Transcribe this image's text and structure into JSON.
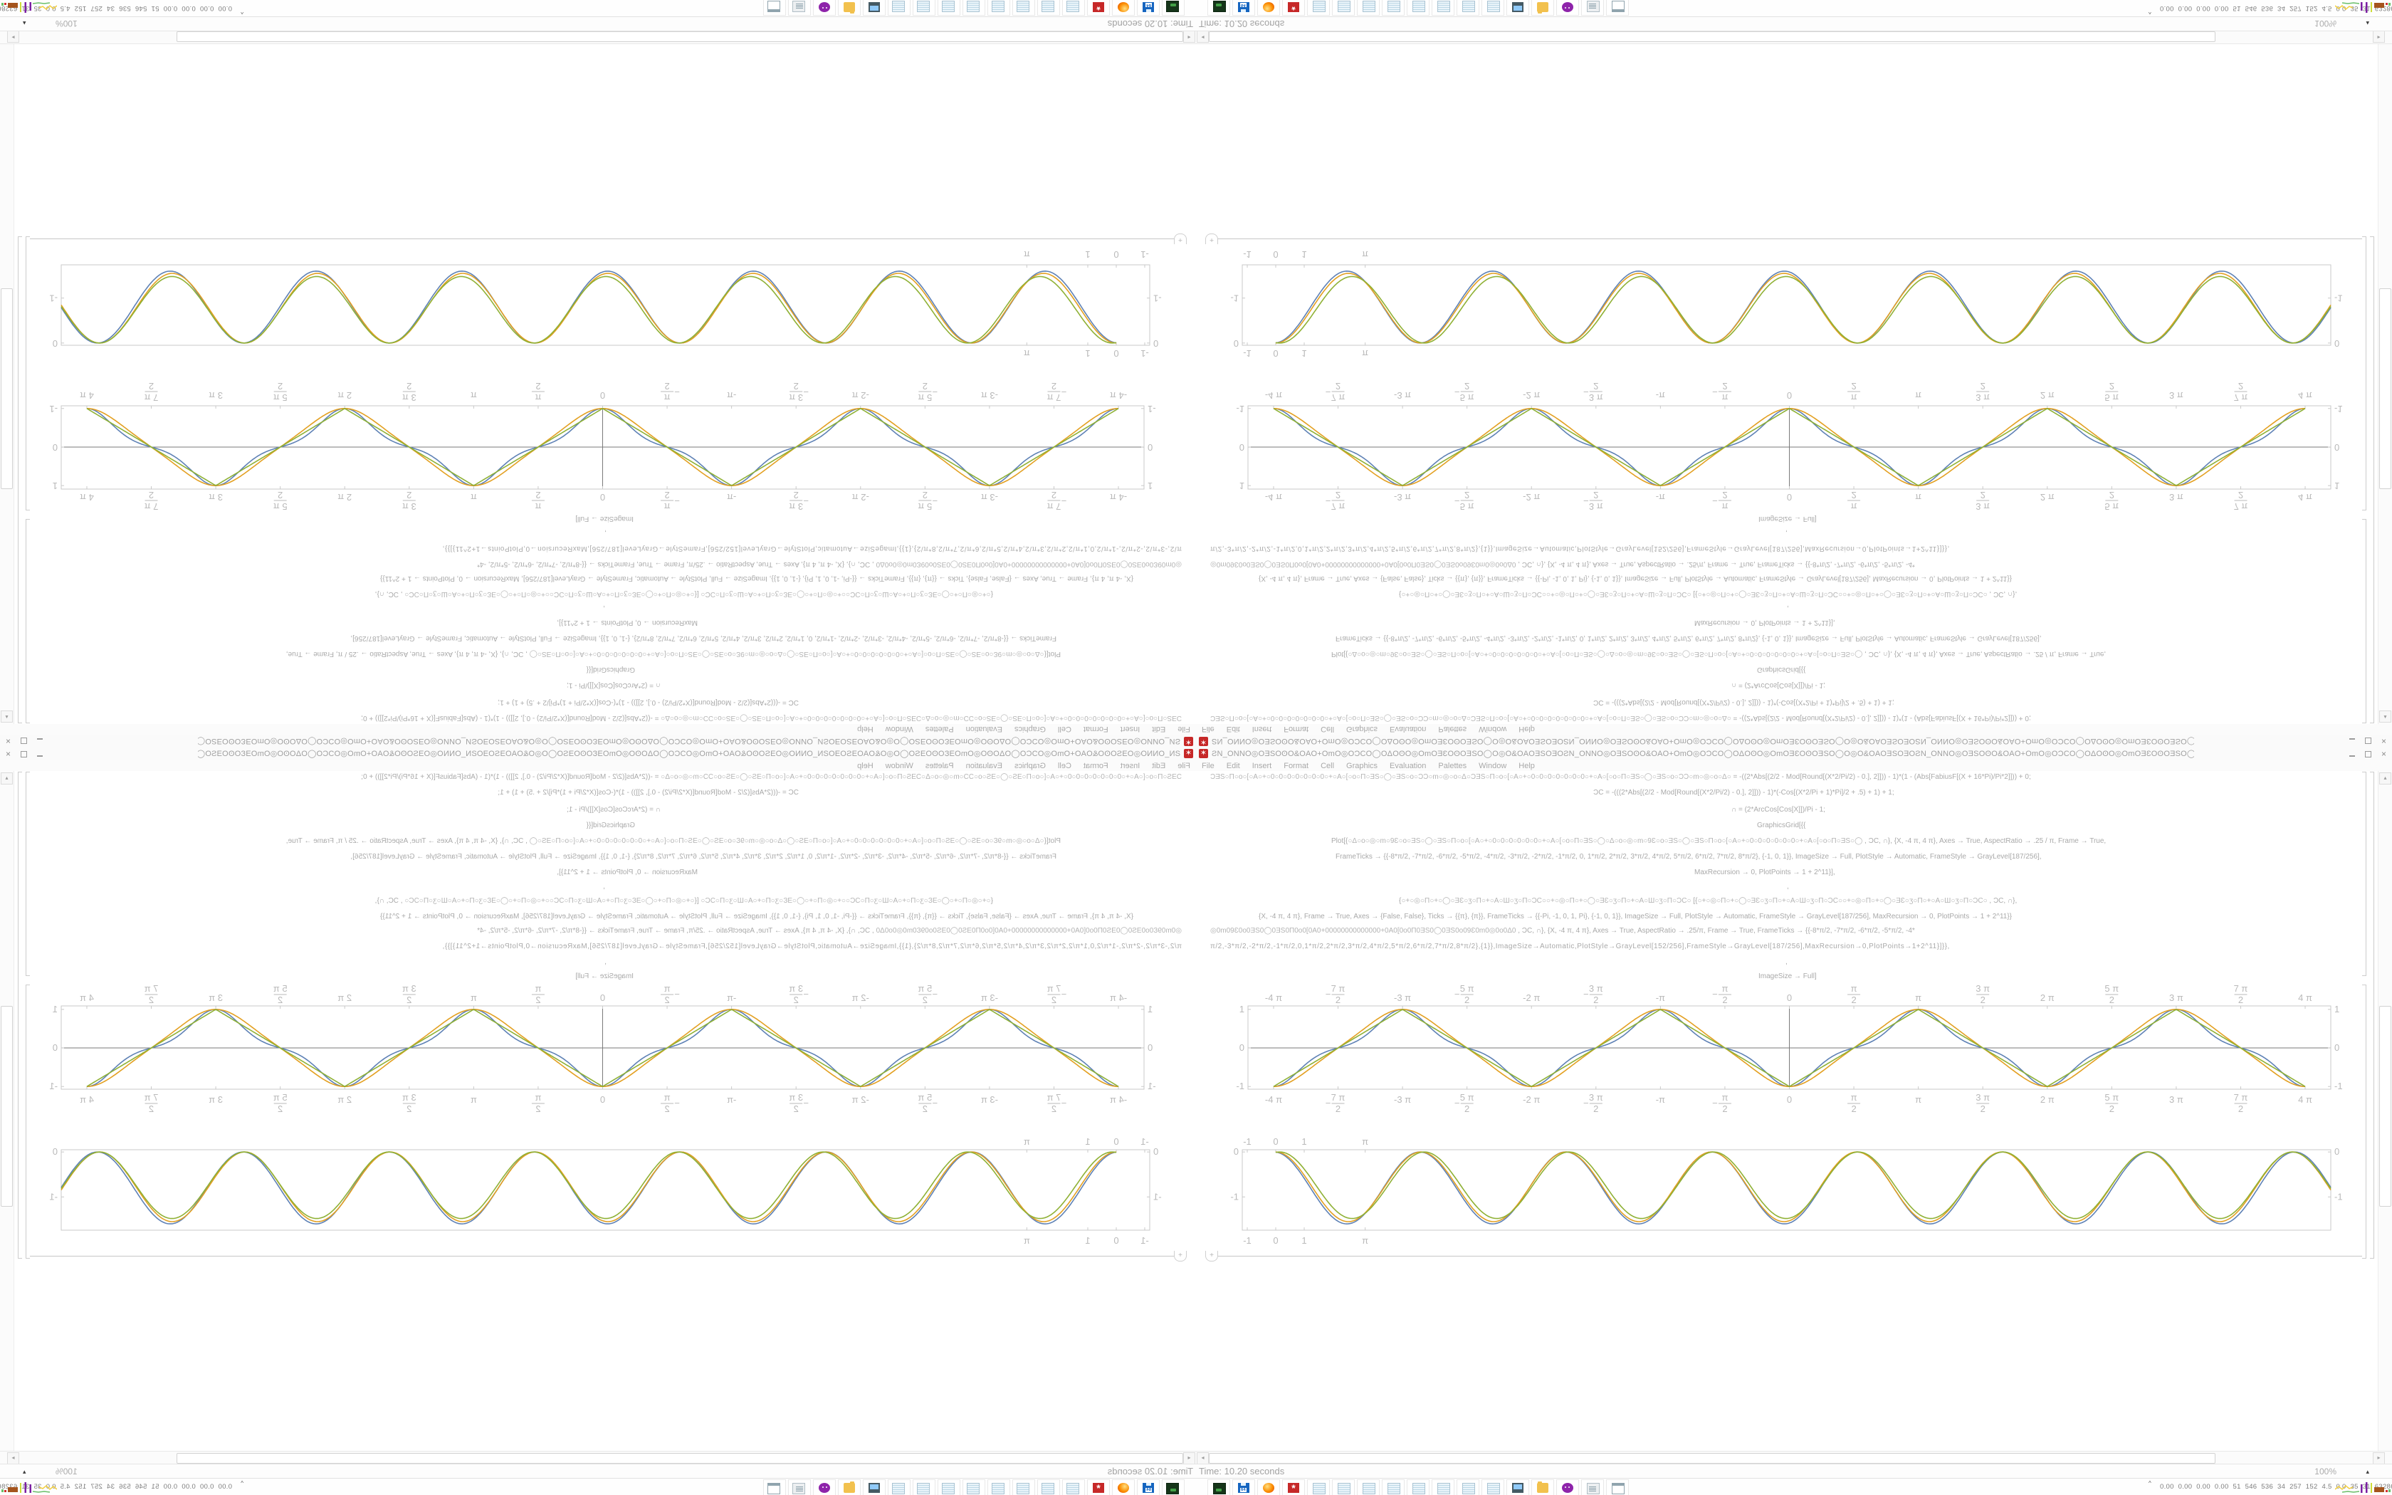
{
  "window": {
    "icon": "mathematica-spikey",
    "title_glyph_motif": "ƧN_ONNO◎OƎSOʘO&OAO+OmO◎OƆCO◯OΔOʘO◎OmOƎƐOʘOƎSO◯O◎O&OAOƎSOƎO",
    "title_glyph_repeat": 3,
    "title_file_tail": "ONNO_NB",
    "title_app_suffix": " - Wolfram Mathematica 12.2",
    "buttons": [
      "minimize",
      "maximize",
      "close"
    ]
  },
  "menu": [
    "File",
    "Edit",
    "Insert",
    "Format",
    "Cell",
    "Graphics",
    "Evaluation",
    "Palettes",
    "Window",
    "Help"
  ],
  "code_cell": {
    "glyph_motifs": {
      "G1": "ƆƎS○Π○o○[○A○+○0○0○0○0○0○0○0○+○A○[○o○Π○ƎS○◯○ƎS○o○ƆƆ○m○◎○o○Δ○",
      "G2": "○Δ○o○◎○m○9Ɛ○o○ƎS○◯○ƎS○Π○o○[○A○+○0○0○0○0○0○0○+○A○[○o○Π○ƎS○◯",
      "G3": "○+○◎○Π○+○◯○ƎƐ○ʒ○Π○+○A○Ш○ʒ○Π○ƆC○",
      "G4": "◎0m09Ɛ0o0ƎS0◯0ƎS0Π0o0[0A0+00000000000000+0A0[0o0Π0ƎS0◯0ƎS0o09Ɛ0m0◎0o0Δ0"
    },
    "lines": [
      {
        "y": 3,
        "x": 20,
        "parts": [
          [
            "g",
            "G1",
            2
          ],
          [
            "t",
            " = -((2*Abs[(2/2 - Mod[Round[(X*2/Pi/2) - 0.], 2]])) - 1)*(1 - (Abs[FabiusF[(X + 16*Pi)/Pi*2]])) + 0;"
          ]
        ]
      },
      {
        "y": 25,
        "x": 558,
        "parts": [
          [
            "t",
            "ƆC = -(((2*Abs[(2/2 - Mod[Round[(X*2/Pi/2) - 0.], 2]])) - 1)*(-Cos[(X*2/Pi + 1)*Pi]/2 + .5) + 1) + 1;"
          ]
        ]
      },
      {
        "y": 49,
        "x": 752,
        "parts": [
          [
            "t",
            "∩ = (2*ArcCos[Cos[X]])/Pi - 1;"
          ]
        ]
      },
      {
        "y": 71,
        "x": 788,
        "parts": [
          [
            "t",
            "GraphicsGrid[{{"
          ]
        ]
      },
      {
        "y": 93,
        "x": 190,
        "parts": [
          [
            "t",
            "Plot[{"
          ],
          [
            "g",
            "G2",
            2
          ],
          [
            "t",
            " , ƆC, ∩}, {X, -4 π, 4 π}, Axes → True, AspectRatio → .25 / π, Frame → True,"
          ]
        ]
      },
      {
        "y": 115,
        "x": 196,
        "parts": [
          [
            "t",
            "FrameTicks → {{-8*π/2, -7*π/2, -6*π/2, -5*π/2, -4*π/2, -3*π/2, -2*π/2, -1*π/2, 0, 1*π/2, 2*π/2, 3*π/2, 4*π/2, 5*π/2, 6*π/2, 7*π/2, 8*π/2}, {-1, 0, 1}}, ImageSize → Full, PlotStyle → Automatic, FrameStyle → GrayLevel[187/256],"
          ]
        ]
      },
      {
        "y": 137,
        "x": 700,
        "parts": [
          [
            "t",
            "MaxRecursion → 0, PlotPoints → 1 + 2^11}],"
          ]
        ]
      },
      {
        "y": 157,
        "x": 830,
        "parts": [
          [
            "t",
            ","
          ]
        ]
      },
      {
        "y": 177,
        "x": 285,
        "parts": [
          [
            "t",
            "{"
          ],
          [
            "g",
            "G3",
            2
          ],
          [
            "t",
            " [{"
          ],
          [
            "g",
            "G3",
            2
          ],
          [
            "t",
            " , ƆC, ∩},"
          ]
        ]
      },
      {
        "y": 199,
        "x": 88,
        "parts": [
          [
            "t",
            "{X, -4 π, 4 π}, Frame → True, Axes → {False, False}, Ticks → {{π}, {π}}, FrameTicks → {{-Pi, -1, 0, 1, Pi}, {-1, 0, 1}}, ImageSize → Full, PlotStyle → Automatic, FrameStyle → GrayLevel[187/256], MaxRecursion → 0, PlotPoints → 1 + 2^11}}"
          ]
        ]
      },
      {
        "y": 219,
        "x": 20,
        "parts": [
          [
            "g",
            "G4",
            1
          ],
          [
            "t",
            " , ƆC, ∩}, {X, -4 π, 4 π}, Axes → True, AspectRatio → .25/π, Frame → True, FrameTicks → {{-8*π/2, -7*π/2, -6*π/2, -5*π/2, -4*"
          ]
        ]
      },
      {
        "y": 241,
        "x": 20,
        "ls": 0.5,
        "parts": [
          [
            "t",
            "π/2,-3*π/2,-2*π/2,-1*π/2,0,1*π/2,2*π/2,3*π/2,4*π/2,5*π/2,6*π/2,7*π/2,8*π/2},{1}},ImageSize→Automatic,PlotStyle→GrayLevel[152/256],FrameStyle→GrayLevel[187/256],MaxRecursion→0,PlotPoints→1+2^11}]}},"
          ]
        ]
      },
      {
        "y": 263,
        "x": 828,
        "parts": [
          [
            "t",
            ","
          ]
        ]
      },
      {
        "y": 283,
        "x": 790,
        "parts": [
          [
            "t",
            "ImageSize → Full]"
          ]
        ]
      }
    ]
  },
  "chart_data": [
    {
      "type": "line",
      "title": "",
      "xlabel": "",
      "ylabel": "",
      "x_range_shown": [
        -13.19,
        13.19
      ],
      "y_range_shown": [
        -1.07,
        1.09
      ],
      "grid": false,
      "frame": true,
      "axes": true,
      "x_ticks": [
        {
          "v": -12.566,
          "plain": "-4 π"
        },
        {
          "v": -10.996,
          "neg": true,
          "num": "7 π",
          "den": "2"
        },
        {
          "v": -9.4248,
          "plain": "-3 π"
        },
        {
          "v": -7.854,
          "neg": true,
          "num": "5 π",
          "den": "2"
        },
        {
          "v": -6.2832,
          "plain": "-2 π"
        },
        {
          "v": -4.7124,
          "neg": true,
          "num": "3 π",
          "den": "2"
        },
        {
          "v": -3.1416,
          "plain": "-π"
        },
        {
          "v": -1.5708,
          "neg": true,
          "num": "π",
          "den": "2"
        },
        {
          "v": 0,
          "plain": "0"
        },
        {
          "v": 1.5708,
          "num": "π",
          "den": "2"
        },
        {
          "v": 3.1416,
          "plain": "π"
        },
        {
          "v": 4.7124,
          "num": "3 π",
          "den": "2"
        },
        {
          "v": 6.2832,
          "plain": "2 π"
        },
        {
          "v": 7.854,
          "num": "5 π",
          "den": "2"
        },
        {
          "v": 9.4248,
          "plain": "3 π"
        },
        {
          "v": 10.996,
          "num": "7 π",
          "den": "2"
        },
        {
          "v": 12.566,
          "plain": "4 π"
        }
      ],
      "y_ticks": [
        {
          "v": 1,
          "l": "1"
        },
        {
          "v": 0,
          "l": "0"
        },
        {
          "v": -1,
          "l": "-1"
        }
      ],
      "series": [
        {
          "name": "flattened-wave",
          "color": "#5e81b5",
          "kind": "pmcos",
          "a": 0.35,
          "domain": [
            -12.566,
            12.566
          ]
        },
        {
          "name": "cosine-wave",
          "color": "#e3a021",
          "kind": "pmcos",
          "a": 0.12,
          "domain": [
            -12.566,
            12.566
          ]
        },
        {
          "name": "triangle-wave",
          "color": "#8fb135",
          "kind": "tri",
          "domain": [
            -12.566,
            12.566
          ]
        }
      ]
    },
    {
      "type": "line",
      "title": "",
      "xlabel": "",
      "ylabel": "",
      "x_range_shown": [
        -1.175,
        37.05
      ],
      "y_range_shown": [
        -1.74,
        0.05
      ],
      "grid": false,
      "frame": true,
      "axes": false,
      "x_ticks": [
        {
          "v": -1,
          "plain": "-1"
        },
        {
          "v": 0,
          "plain": "0"
        },
        {
          "v": 1,
          "plain": "1"
        },
        {
          "v": 3.1416,
          "plain": "π"
        }
      ],
      "y_ticks": [
        {
          "v": 0,
          "l": "0"
        },
        {
          "v": -1,
          "l": "-1"
        }
      ],
      "series": [
        {
          "name": "dip-wave-blue",
          "color": "#5e81b5",
          "kind": "dip",
          "A": 0.8,
          "P": 5.12,
          "phi": -0.06,
          "domain": [
            0,
            37.05
          ]
        },
        {
          "name": "dip-wave-orange",
          "color": "#e3a021",
          "kind": "dip",
          "A": 0.775,
          "P": 5.1,
          "phi": 0.0,
          "domain": [
            0,
            37.05
          ]
        },
        {
          "name": "dip-wave-green",
          "color": "#8fb135",
          "kind": "dip",
          "A": 0.74,
          "P": 5.08,
          "phi": 0.14,
          "domain": [
            0,
            37.05
          ]
        }
      ]
    }
  ],
  "notebook_ui": {
    "insertion_plus": "+",
    "scroll_up_glyph": "▴",
    "scroll_left_glyph": "◂",
    "scroll_right_glyph": "▸"
  },
  "statusbar": {
    "time": "Time: 10.20 seconds",
    "zoom": "100%",
    "zoom_caret": "▴"
  },
  "taskbar": {
    "tiles": [
      "terminal",
      "floppy",
      "firefox",
      "gear",
      "note",
      "note",
      "note",
      "note",
      "note",
      "note",
      "note",
      "note",
      "monitor",
      "folder",
      "owl",
      "scroll",
      "window"
    ],
    "monitor_chevrons": "^^",
    "monitor_text": "0.00 0.00 0.00 0.00  51  546 536  34  257 152  4.5  0.0  35  31 63286910"
  },
  "colors": {
    "curve_blue": "#5e81b5",
    "curve_orange": "#e3a021",
    "curve_green": "#8fb135",
    "frame_gray": "#c9c9c9",
    "axis_gray": "#7a7a7a",
    "label_gray": "#b9b9b9",
    "text_gray": "#a9a9a9",
    "app_red": "#c62828"
  }
}
